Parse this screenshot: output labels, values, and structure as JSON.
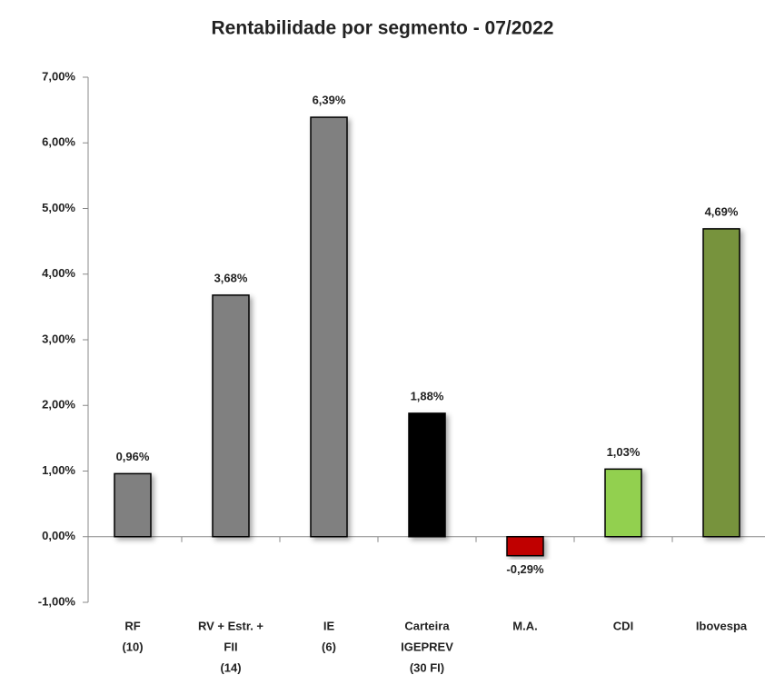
{
  "chart_data": {
    "type": "bar",
    "title": "Rentabilidade por segmento - 07/2022",
    "categories": [
      [
        "RF",
        "(10)"
      ],
      [
        "RV + Estr. +",
        "FII",
        "(14)"
      ],
      [
        "IE",
        "(6)"
      ],
      [
        "Carteira",
        "IGEPREV",
        "(30 FI)"
      ],
      [
        "M.A."
      ],
      [
        "CDI"
      ],
      [
        "Ibovespa"
      ]
    ],
    "values": [
      0.96,
      3.68,
      6.39,
      1.88,
      -0.29,
      1.03,
      4.69
    ],
    "value_labels": [
      "0,96%",
      "3,68%",
      "6,39%",
      "1,88%",
      "-0,29%",
      "1,03%",
      "4,69%"
    ],
    "colors": [
      "#808080",
      "#808080",
      "#808080",
      "#000000",
      "#c00000",
      "#92d050",
      "#77933c"
    ],
    "negative_label_color": "#ff0000",
    "ylim": [
      -1,
      7
    ],
    "yticks": [
      {
        "value": -1,
        "label": "-1,00%"
      },
      {
        "value": 0,
        "label": "0,00%"
      },
      {
        "value": 1,
        "label": "1,00%"
      },
      {
        "value": 2,
        "label": "2,00%"
      },
      {
        "value": 3,
        "label": "3,00%"
      },
      {
        "value": 4,
        "label": "4,00%"
      },
      {
        "value": 5,
        "label": "5,00%"
      },
      {
        "value": 6,
        "label": "6,00%"
      },
      {
        "value": 7,
        "label": "7,00%"
      }
    ],
    "grid": false
  }
}
